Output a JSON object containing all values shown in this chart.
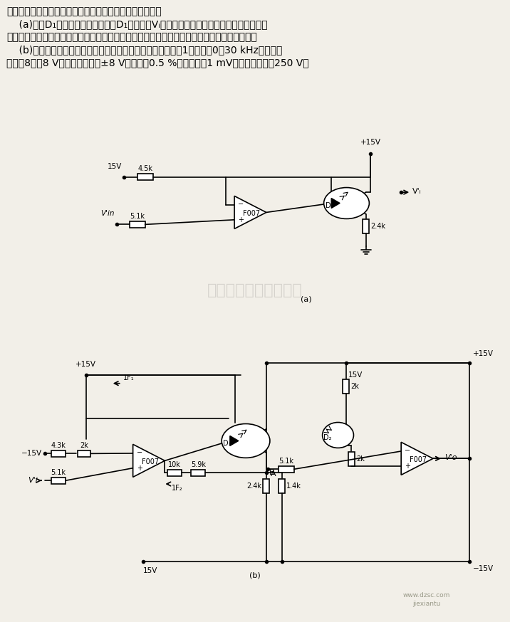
{
  "bg": "#f2efe8",
  "lc": "black",
  "text_lines": [
    "利用负反馈技术可以大大提高光电耦合器件的传输线性度。",
    "    (a)中，D₁处在反馈通路中，流经D₁的电流与Vᵢ严格成线性关系。这个电路的缺点是没有",
    "考虑到光电耦合器件电流传输比与工作电流之间的非线性关系。为此，须精心挑选、调整器件。",
    "    (b)中，增加第二级反馈，使线性度大大提高。本电路增益为1，频率为0～30 kHz，动态范",
    "围为－8～＋8 V，非线性失真（±8 V时）小于0.5 %，噪声小于1 mV，共模电压大于250 V。"
  ],
  "watermark": "杭州将睐科技有限公司",
  "label_a": "(a)",
  "label_b": "(b)",
  "www": "www.dzsc.com",
  "jlx": "jiexiantu"
}
